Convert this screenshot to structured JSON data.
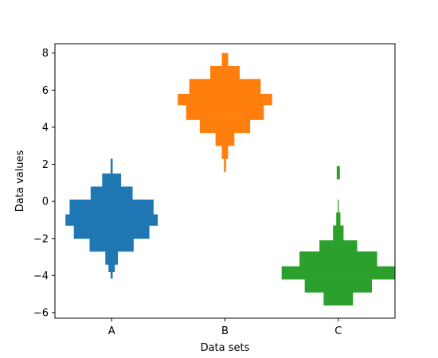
{
  "chart_data": {
    "type": "bar",
    "subtype": "histogram-violin",
    "title": "",
    "xlabel": "Data sets",
    "ylabel": "Data values",
    "categories": [
      "A",
      "B",
      "C"
    ],
    "ylim": [
      -6.3,
      8.5
    ],
    "yticks": [
      "−6",
      "−4",
      "−2",
      "0",
      "2",
      "4",
      "6",
      "8"
    ],
    "ytick_values": [
      -6,
      -4,
      -2,
      0,
      2,
      4,
      6,
      8
    ],
    "grid": false,
    "legend": "none",
    "histograms": [
      {
        "category": "A",
        "color": "#1f77b4",
        "bins": [
          {
            "lo": -4.15,
            "hi": -3.8,
            "count": 1
          },
          {
            "lo": -3.8,
            "hi": -3.4,
            "count": 3
          },
          {
            "lo": -3.4,
            "hi": -2.7,
            "count": 6
          },
          {
            "lo": -2.7,
            "hi": -2.0,
            "count": 21
          },
          {
            "lo": -2.0,
            "hi": -1.3,
            "count": 36
          },
          {
            "lo": -1.3,
            "hi": -0.7,
            "count": 44
          },
          {
            "lo": -0.7,
            "hi": 0.1,
            "count": 40
          },
          {
            "lo": 0.1,
            "hi": 0.8,
            "count": 20
          },
          {
            "lo": 0.8,
            "hi": 1.5,
            "count": 9
          },
          {
            "lo": 1.5,
            "hi": 2.3,
            "count": 1
          }
        ]
      },
      {
        "category": "B",
        "color": "#ff7f0e",
        "bins": [
          {
            "lo": 1.6,
            "hi": 2.3,
            "count": 1
          },
          {
            "lo": 2.3,
            "hi": 3.0,
            "count": 3
          },
          {
            "lo": 3.0,
            "hi": 3.7,
            "count": 9
          },
          {
            "lo": 3.7,
            "hi": 4.4,
            "count": 24
          },
          {
            "lo": 4.4,
            "hi": 5.2,
            "count": 37
          },
          {
            "lo": 5.2,
            "hi": 5.8,
            "count": 45
          },
          {
            "lo": 5.8,
            "hi": 6.6,
            "count": 34
          },
          {
            "lo": 6.6,
            "hi": 7.3,
            "count": 14
          },
          {
            "lo": 7.3,
            "hi": 8.0,
            "count": 3
          }
        ]
      },
      {
        "category": "C",
        "color": "#2ca02c",
        "bins": [
          {
            "lo": -5.6,
            "hi": -4.9,
            "count": 14
          },
          {
            "lo": -4.9,
            "hi": -4.2,
            "count": 32
          },
          {
            "lo": -4.2,
            "hi": -3.5,
            "count": 54
          },
          {
            "lo": -3.5,
            "hi": -2.7,
            "count": 37
          },
          {
            "lo": -2.7,
            "hi": -2.1,
            "count": 18
          },
          {
            "lo": -2.1,
            "hi": -1.3,
            "count": 5
          },
          {
            "lo": -1.3,
            "hi": -0.6,
            "count": 2
          },
          {
            "lo": -0.6,
            "hi": 0.1,
            "count": 0.5
          },
          {
            "lo": 1.2,
            "hi": 1.9,
            "count": 1.5
          }
        ]
      }
    ]
  }
}
